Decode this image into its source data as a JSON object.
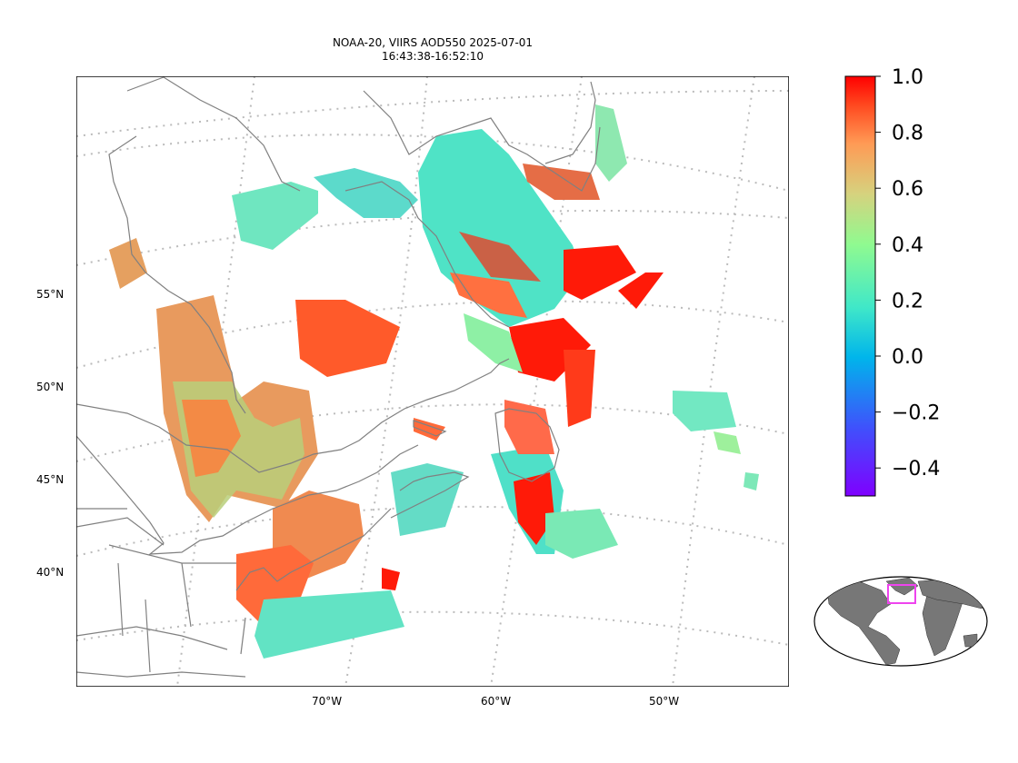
{
  "title": {
    "line1": "NOAA-20, VIIRS AOD550 2025-07-01",
    "line2": "16:43:38-16:52:10"
  },
  "axes": {
    "lat_labels": [
      "55°N",
      "50°N",
      "45°N",
      "40°N"
    ],
    "lon_labels": [
      "70°W",
      "60°W",
      "50°W"
    ]
  },
  "colorbar": {
    "min": -0.5,
    "max": 1.0,
    "ticks": [
      "1.0",
      "0.8",
      "0.6",
      "0.4",
      "0.2",
      "0.0",
      "−0.2",
      "−0.4"
    ],
    "colormap": "rainbow"
  },
  "colors": {
    "coast": "#808080",
    "graticule": "#bbbbbb",
    "inset_box": "#ee44ee",
    "land_inset": "#777777"
  }
}
